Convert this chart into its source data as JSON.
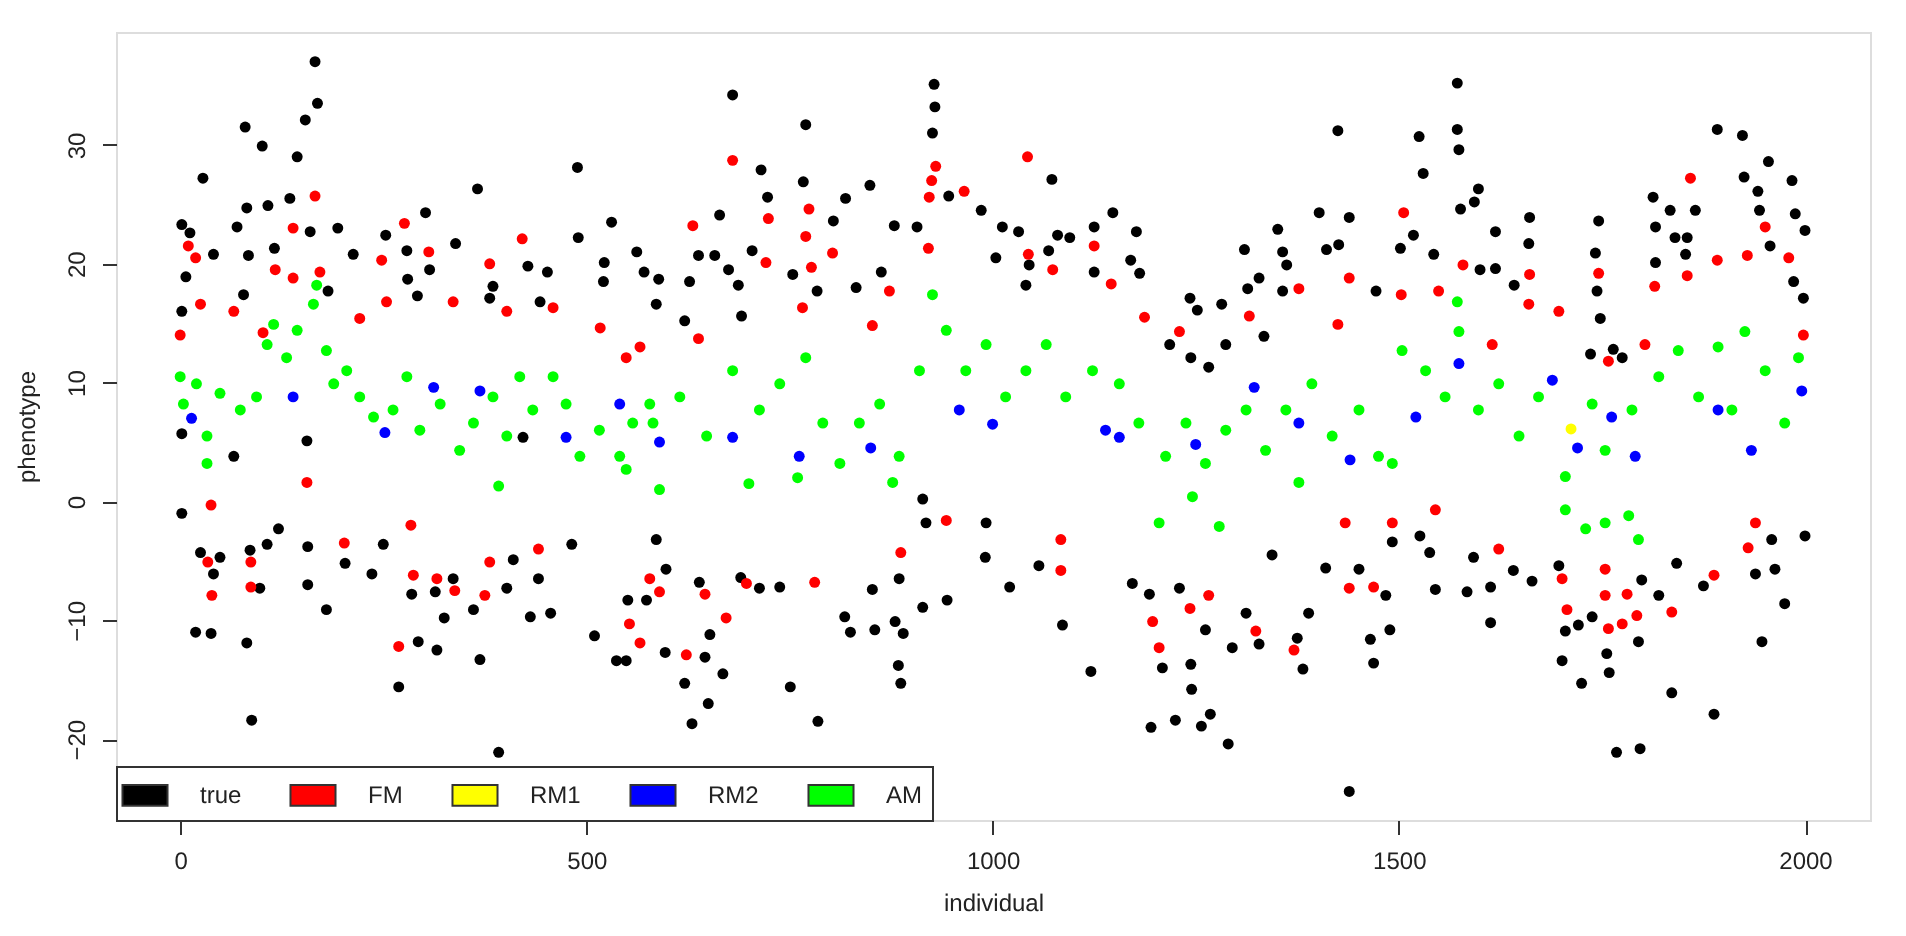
{
  "chart_data": {
    "type": "scatter",
    "xlabel": "individual",
    "ylabel": "phenotype",
    "xlim": [
      -79,
      2080
    ],
    "ylim": [
      -26.8,
      39.5
    ],
    "xticks": [
      0,
      500,
      1000,
      1500,
      2000
    ],
    "yticks": [
      -20,
      -10,
      0,
      10,
      20,
      30
    ],
    "grid": false,
    "legend": "bottom left",
    "marker": "circle",
    "series": [
      {
        "name": "true",
        "color": "#000000",
        "x": [
          166,
          169,
          154,
          80,
          101,
          144,
          28,
          489,
          366,
          82,
          135,
          108,
          302,
          531,
          2,
          12,
          70,
          160,
          194,
          253,
          339,
          490,
          562,
          41,
          84,
          213,
          279,
          452,
          522,
          571,
          307,
          428,
          280,
          7,
          182,
          385,
          521,
          589,
          2,
          78,
          292,
          381,
          443,
          586,
          116,
          2,
          66,
          156,
          422,
          2,
          25,
          19,
          38,
          41,
          49,
          82,
          88,
          98,
          86,
          107,
          121,
          157,
          157,
          180,
          203,
          236,
          250,
          269,
          285,
          293,
          316,
          314,
          325,
          336,
          361,
          369,
          392,
          402,
          410,
          431,
          441,
          456,
          482,
          510,
          537,
          549,
          551,
          574,
          586,
          680,
          770,
          928,
          929,
          926,
          715,
          767,
          849,
          1073,
          723,
          819,
          986,
          946,
          664,
          804,
          879,
          907,
          1012,
          1032,
          1148,
          1125,
          1177,
          1080,
          1095,
          1310,
          1351,
          638,
          658,
          704,
          1004,
          1045,
          1069,
          1170,
          1181,
          1125,
          863,
          1328,
          1314,
          675,
          627,
          687,
          754,
          784,
          832,
          1041,
          1243,
          1282,
          1252,
          621,
          691,
          1218,
          1244,
          1266,
          1334,
          1287,
          630,
          650,
          621,
          597,
          646,
          668,
          652,
          751,
          785,
          818,
          825,
          855,
          880,
          890,
          884,
          887,
          914,
          944,
          1021,
          1086,
          1121,
          991,
          885,
          852,
          738,
          713,
          690,
          639,
          598,
          1195,
          1225,
          1257,
          1268,
          1290,
          1245,
          1244,
          1209,
          1295,
          1328,
          1312,
          1262,
          1172,
          1193,
          1230,
          1057,
          992,
          918,
          914,
          1572,
          1572,
          1574,
          1425,
          1525,
          1530,
          1892,
          1923,
          1955,
          1984,
          1925,
          1942,
          1813,
          1598,
          1593,
          1576,
          1402,
          1439,
          1661,
          1746,
          1834,
          1865,
          1944,
          1988,
          2000,
          1619,
          1660,
          1742,
          1357,
          1411,
          1426,
          1816,
          1840,
          1855,
          1518,
          1502,
          1543,
          1600,
          1619,
          1642,
          1362,
          1357,
          1472,
          1744,
          1816,
          1853,
          1957,
          1986,
          1998,
          1736,
          1764,
          1775,
          1748,
          1439,
          1768,
          1797,
          1888,
          1836,
          1725,
          1701,
          1759,
          1756,
          1795,
          1382,
          1469,
          1465,
          1489,
          1375,
          1389,
          1613,
          1947,
          1975,
          1705,
          1721,
          1738,
          1820,
          1484,
          1545,
          1584,
          1613,
          1664,
          1641,
          1592,
          1538,
          1451,
          1410,
          1344,
          1875,
          1939,
          1963,
          1959,
          2000,
          1842,
          1799,
          1697,
          1526,
          1492
        ],
        "values": [
          37.0,
          33.5,
          32.1,
          31.5,
          29.9,
          29.0,
          27.2,
          28.1,
          26.3,
          24.7,
          25.5,
          24.9,
          24.3,
          23.5,
          23.3,
          22.6,
          23.1,
          22.7,
          23.0,
          22.4,
          21.7,
          22.2,
          21.0,
          20.8,
          20.7,
          20.8,
          21.1,
          19.3,
          20.1,
          19.3,
          19.5,
          19.8,
          18.7,
          18.9,
          17.7,
          18.1,
          18.5,
          18.7,
          16.0,
          17.4,
          17.3,
          17.1,
          16.8,
          16.6,
          21.3,
          5.7,
          3.8,
          5.1,
          5.4,
          -1.0,
          -4.3,
          -11.0,
          -11.1,
          -6.1,
          -4.7,
          -11.9,
          -18.4,
          -7.3,
          -4.1,
          -3.6,
          -2.3,
          -7.0,
          -3.8,
          -9.1,
          -5.2,
          -6.1,
          -3.6,
          -15.6,
          -7.8,
          -11.8,
          -12.5,
          -7.6,
          -9.8,
          -6.5,
          -9.1,
          -13.3,
          -21.1,
          -7.3,
          -4.9,
          -9.7,
          -6.5,
          -9.4,
          -3.6,
          -11.3,
          -13.4,
          -13.4,
          -8.3,
          -8.3,
          -3.2,
          34.2,
          31.7,
          35.1,
          33.2,
          31.0,
          27.9,
          26.9,
          26.6,
          27.1,
          25.6,
          25.5,
          24.5,
          25.7,
          24.1,
          23.6,
          23.2,
          23.1,
          23.1,
          22.7,
          24.3,
          23.1,
          22.7,
          22.4,
          22.2,
          21.2,
          22.9,
          20.7,
          20.7,
          21.1,
          20.5,
          19.9,
          21.1,
          20.3,
          19.2,
          19.3,
          19.3,
          18.8,
          17.9,
          19.5,
          18.5,
          18.2,
          19.1,
          17.7,
          18.0,
          18.2,
          17.1,
          16.6,
          16.1,
          15.2,
          15.6,
          13.2,
          12.1,
          11.3,
          13.9,
          13.2,
          -18.7,
          -17.0,
          -15.3,
          -12.7,
          -13.1,
          -14.5,
          -11.2,
          -15.6,
          -18.5,
          -9.7,
          -11.0,
          -10.8,
          -10.1,
          -11.1,
          -13.8,
          -15.3,
          -8.9,
          -8.3,
          -7.2,
          -10.4,
          -14.3,
          -4.7,
          -6.5,
          -7.4,
          -7.2,
          -7.3,
          -6.4,
          -6.8,
          -5.7,
          -19.0,
          -18.4,
          -18.9,
          -17.9,
          -20.4,
          -15.8,
          -13.7,
          -14.0,
          -12.3,
          -12.0,
          -9.4,
          -10.8,
          -6.9,
          -7.8,
          -7.3,
          -5.4,
          -1.8,
          -1.8,
          0.2,
          35.2,
          31.3,
          29.6,
          31.2,
          30.7,
          27.6,
          31.3,
          30.8,
          28.6,
          27.0,
          27.3,
          26.1,
          25.6,
          26.3,
          25.2,
          24.6,
          24.3,
          23.9,
          23.9,
          23.6,
          24.5,
          24.5,
          24.5,
          24.2,
          22.8,
          22.7,
          21.7,
          20.9,
          21.0,
          21.2,
          21.6,
          23.1,
          22.2,
          22.2,
          22.4,
          21.3,
          20.8,
          19.5,
          19.6,
          18.2,
          19.9,
          17.7,
          17.7,
          17.7,
          20.1,
          20.8,
          21.5,
          18.5,
          17.1,
          12.4,
          12.8,
          12.1,
          15.4,
          -24.4,
          -21.1,
          -20.8,
          -17.9,
          -16.1,
          -15.3,
          -13.4,
          -14.4,
          -12.8,
          -11.8,
          -14.1,
          -13.6,
          -11.6,
          -10.8,
          -11.5,
          -9.4,
          -10.2,
          -11.8,
          -8.6,
          -10.9,
          -10.4,
          -9.7,
          -7.9,
          -7.9,
          -7.4,
          -7.6,
          -7.2,
          -6.7,
          -5.8,
          -4.7,
          -4.3,
          -5.7,
          -5.6,
          -4.5,
          -7.1,
          -6.1,
          -5.7,
          -3.2,
          -2.9,
          -5.2,
          -6.6,
          -5.4,
          -2.9,
          -3.4
        ]
      },
      {
        "name": "FM",
        "color": "#ff0000",
        "x": [
          166,
          276,
          421,
          306,
          248,
          381,
          10,
          19,
          139,
          117,
          0,
          25,
          459,
          517,
          549,
          254,
          221,
          402,
          336,
          66,
          139,
          102,
          172,
          38,
          34,
          39,
          87,
          87,
          202,
          269,
          287,
          316,
          338,
          375,
          381,
          441,
          553,
          566,
          578,
          156,
          284,
          680,
          1043,
          930,
          925,
          922,
          965,
          774,
          631,
          724,
          770,
          803,
          1125,
          921,
          721,
          777,
          873,
          1187,
          1316,
          1230,
          638,
          852,
          766,
          1044,
          1074,
          1146,
          566,
          623,
          672,
          781,
          697,
          646,
          590,
          1084,
          1197,
          1205,
          1243,
          1324,
          1266,
          887,
          943,
          1084,
          1859,
          1506,
          1579,
          1439,
          1377,
          1661,
          1746,
          1892,
          1951,
          1980,
          1929,
          1855,
          1815,
          1697,
          1758,
          1803,
          1503,
          1549,
          1615,
          1425,
          1660,
          1998,
          1371,
          1439,
          1469,
          1707,
          1758,
          1775,
          1793,
          1836,
          1754,
          1781,
          1888,
          1930,
          1701,
          1754,
          1545,
          1623,
          1492,
          1434,
          1939
        ],
        "values": [
          25.7,
          23.4,
          22.1,
          21.0,
          20.3,
          20.0,
          21.5,
          20.5,
          23.0,
          19.5,
          14.0,
          16.6,
          16.3,
          14.6,
          12.1,
          16.8,
          15.4,
          16.0,
          16.8,
          16.0,
          18.8,
          14.2,
          19.3,
          -0.3,
          -5.1,
          -7.9,
          -5.1,
          -7.2,
          -3.5,
          -12.2,
          -6.2,
          -6.5,
          -7.5,
          -7.9,
          -5.1,
          -4.0,
          -10.3,
          -11.9,
          -6.5,
          1.6,
          -2.0,
          28.7,
          29.0,
          28.2,
          27.0,
          25.6,
          26.1,
          24.6,
          23.2,
          23.8,
          22.3,
          20.9,
          21.5,
          21.3,
          20.1,
          19.7,
          17.7,
          15.5,
          15.6,
          14.3,
          13.7,
          14.8,
          16.3,
          20.8,
          19.5,
          18.3,
          13.0,
          -12.9,
          -9.8,
          -6.8,
          -6.9,
          -7.8,
          -7.6,
          -5.8,
          -10.1,
          -12.3,
          -9.0,
          -10.9,
          -7.9,
          -4.3,
          -1.6,
          -3.2,
          27.2,
          24.3,
          19.9,
          18.8,
          17.9,
          19.1,
          19.2,
          20.3,
          23.1,
          20.5,
          20.7,
          19.0,
          18.1,
          16.0,
          11.8,
          13.2,
          17.4,
          17.7,
          13.2,
          14.9,
          16.6,
          14.0,
          -12.5,
          -7.3,
          -7.2,
          -9.1,
          -10.7,
          -10.3,
          -9.6,
          -9.3,
          -7.9,
          -7.8,
          -6.2,
          -3.9,
          -6.5,
          -5.7,
          -0.7,
          -4.0,
          -1.8,
          -1.8,
          -1.8
        ]
      },
      {
        "name": "RM1",
        "color": "#ffff00",
        "x": [
          1712
        ],
        "values": [
          6.1
        ]
      },
      {
        "name": "RM2",
        "color": "#0000ff",
        "x": [
          14,
          139,
          252,
          312,
          369,
          475,
          541,
          590,
          680,
          762,
          850,
          959,
          1000,
          1139,
          1156,
          1250,
          1322,
          1377,
          1440,
          1521,
          1574,
          1689,
          1720,
          1762,
          1791,
          1893,
          1934,
          1996
        ],
        "values": [
          7.0,
          8.8,
          5.8,
          9.6,
          9.3,
          5.4,
          8.2,
          5.0,
          5.4,
          3.8,
          4.5,
          7.7,
          6.5,
          6.0,
          5.4,
          4.8,
          9.6,
          6.6,
          3.5,
          7.1,
          11.6,
          10.2,
          4.5,
          7.1,
          3.8,
          7.7,
          4.3,
          9.3
        ]
      },
      {
        "name": "AM",
        "color": "#00ff00",
        "x": [
          0,
          4,
          20,
          33,
          49,
          74,
          94,
          107,
          115,
          131,
          144,
          164,
          168,
          180,
          189,
          205,
          221,
          238,
          262,
          279,
          295,
          320,
          344,
          361,
          385,
          402,
          418,
          434,
          459,
          475,
          492,
          516,
          541,
          557,
          578,
          582,
          615,
          648,
          680,
          713,
          738,
          770,
          791,
          812,
          836,
          861,
          885,
          910,
          926,
          943,
          967,
          992,
          1016,
          1041,
          1066,
          1090,
          1123,
          1156,
          1180,
          1213,
          1238,
          1262,
          1287,
          1312,
          1336,
          1361,
          1393,
          1418,
          1451,
          1475,
          1504,
          1533,
          1557,
          1572,
          1574,
          1598,
          1623,
          1648,
          1672,
          1738,
          1754,
          1787,
          1820,
          1844,
          1869,
          1893,
          1910,
          1926,
          1951,
          1975,
          1992,
          33,
          392,
          549,
          590,
          700,
          760,
          877,
          1205,
          1246,
          1279,
          1377,
          1492,
          1705,
          1705,
          1730,
          1754,
          1783,
          1795
        ],
        "values": [
          10.5,
          8.2,
          9.9,
          5.5,
          9.1,
          7.7,
          8.8,
          13.2,
          14.9,
          12.1,
          14.4,
          16.6,
          18.2,
          12.7,
          9.9,
          11.0,
          8.8,
          7.1,
          7.7,
          10.5,
          6.0,
          8.2,
          4.3,
          6.6,
          8.8,
          5.5,
          10.5,
          7.7,
          10.5,
          8.2,
          3.8,
          6.0,
          3.8,
          6.6,
          8.2,
          6.6,
          8.8,
          5.5,
          11.0,
          7.7,
          9.9,
          12.1,
          6.6,
          3.2,
          6.6,
          8.2,
          3.8,
          11.0,
          17.4,
          14.4,
          11.0,
          13.2,
          8.8,
          11.0,
          13.2,
          8.8,
          11.0,
          9.9,
          6.6,
          3.8,
          6.6,
          3.2,
          6.0,
          7.7,
          4.3,
          7.7,
          9.9,
          5.5,
          7.7,
          3.8,
          12.7,
          11.0,
          8.8,
          16.8,
          14.3,
          7.7,
          9.9,
          5.5,
          8.8,
          8.2,
          4.3,
          7.7,
          10.5,
          12.7,
          8.8,
          13.0,
          7.7,
          14.3,
          11.0,
          6.6,
          12.1,
          3.2,
          1.3,
          2.7,
          1.0,
          1.5,
          2.0,
          1.6,
          -1.8,
          0.4,
          -2.1,
          1.6,
          3.2,
          2.1,
          -0.7,
          -2.3,
          -1.8,
          -1.2,
          -3.2
        ]
      }
    ]
  }
}
